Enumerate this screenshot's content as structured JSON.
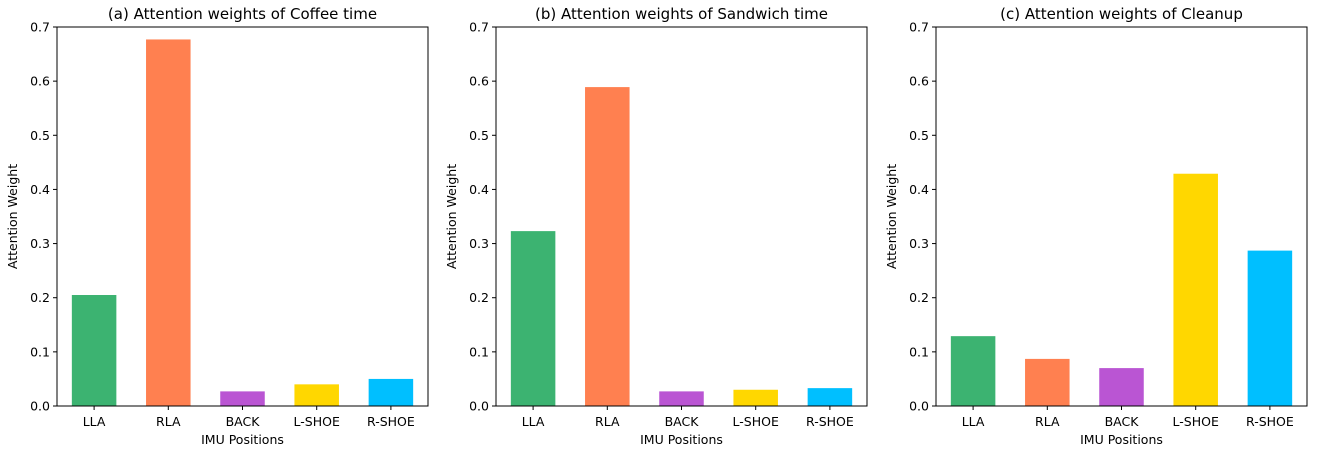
{
  "figure": {
    "background": "#ffffff"
  },
  "colors": {
    "LLA": "#3cb371",
    "RLA": "#ff8050",
    "BACK": "#ba55d3",
    "L-SHOE": "#ffd700",
    "R-SHOE": "#00bfff"
  },
  "chart_data": [
    {
      "type": "bar",
      "title": "(a) Attention weights of Coffee time",
      "xlabel": "IMU Positions",
      "ylabel": "Attention Weight",
      "categories": [
        "LLA",
        "RLA",
        "BACK",
        "L-SHOE",
        "R-SHOE"
      ],
      "values": [
        0.205,
        0.677,
        0.027,
        0.04,
        0.05
      ],
      "ylim": [
        0,
        0.7
      ],
      "yticks": [
        "0.0",
        "0.1",
        "0.2",
        "0.3",
        "0.4",
        "0.5",
        "0.6",
        "0.7"
      ],
      "grid": false,
      "legend": "none"
    },
    {
      "type": "bar",
      "title": "(b) Attention weights of Sandwich time",
      "xlabel": "IMU Positions",
      "ylabel": "Attention Weight",
      "categories": [
        "LLA",
        "RLA",
        "BACK",
        "L-SHOE",
        "R-SHOE"
      ],
      "values": [
        0.323,
        0.589,
        0.027,
        0.03,
        0.033
      ],
      "ylim": [
        0,
        0.7
      ],
      "yticks": [
        "0.0",
        "0.1",
        "0.2",
        "0.3",
        "0.4",
        "0.5",
        "0.6",
        "0.7"
      ],
      "grid": false,
      "legend": "none"
    },
    {
      "type": "bar",
      "title": "(c) Attention weights of Cleanup",
      "xlabel": "IMU Positions",
      "ylabel": "Attention Weight",
      "categories": [
        "LLA",
        "RLA",
        "BACK",
        "L-SHOE",
        "R-SHOE"
      ],
      "values": [
        0.129,
        0.087,
        0.07,
        0.429,
        0.287
      ],
      "ylim": [
        0,
        0.7
      ],
      "yticks": [
        "0.0",
        "0.1",
        "0.2",
        "0.3",
        "0.4",
        "0.5",
        "0.6",
        "0.7"
      ],
      "grid": false,
      "legend": "none"
    }
  ]
}
